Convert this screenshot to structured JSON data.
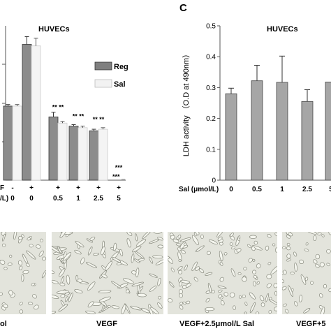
{
  "panel_c_letter": "C",
  "chart_data": [
    {
      "type": "bar",
      "title": "HUVECs",
      "legend": [
        "Reg",
        "Sal"
      ],
      "legend_placement": "right",
      "row1_label": "F",
      "row2_label": "/L)",
      "row1_leading": "-",
      "row1": [
        "+",
        "+",
        "+",
        "+",
        "+"
      ],
      "row2": [
        "0",
        "0",
        "0.5",
        "1",
        "2.5",
        "5"
      ],
      "series": [
        {
          "name": "Reg",
          "values": [
            0.48,
            0.88,
            0.41,
            0.35,
            0.32,
            0.0
          ]
        },
        {
          "name": "Sal",
          "values": [
            0.48,
            0.87,
            0.37,
            0.34,
            0.33,
            0.0
          ]
        }
      ],
      "errors": {
        "Reg": [
          0.01,
          0.05,
          0.03,
          0.01,
          0.01,
          0.0
        ],
        "Sal": [
          0.01,
          0.05,
          0.01,
          0.01,
          0.01,
          0.0
        ]
      },
      "annotations": [
        {
          "group": 2,
          "text": "** **"
        },
        {
          "group": 3,
          "text": "** **"
        },
        {
          "group": 4,
          "text": "** **"
        },
        {
          "group": 5,
          "text": "***"
        },
        {
          "group": 5,
          "text": "*** _"
        }
      ],
      "ylim": [
        0,
        1.0
      ]
    },
    {
      "type": "bar",
      "title": "HUVECs",
      "ylabel": "LDH activity （O.D at 490nm）",
      "xlabel": "Sal (μmol/L)",
      "categories": [
        "0",
        "0.5",
        "1",
        "2.5",
        "5"
      ],
      "values": [
        0.28,
        0.322,
        0.317,
        0.255,
        0.318
      ],
      "errors": [
        0.018,
        0.05,
        0.085,
        0.038,
        0.0
      ],
      "yticks": [
        "0",
        "0.1",
        "0.2",
        "0.3",
        "0.4",
        "0.5"
      ],
      "ylim": [
        0,
        0.5
      ]
    }
  ],
  "photos": {
    "captions": [
      "ol",
      "VEGF",
      "VEGF+2.5μmol/L Sal",
      "VEGF+5"
    ]
  }
}
